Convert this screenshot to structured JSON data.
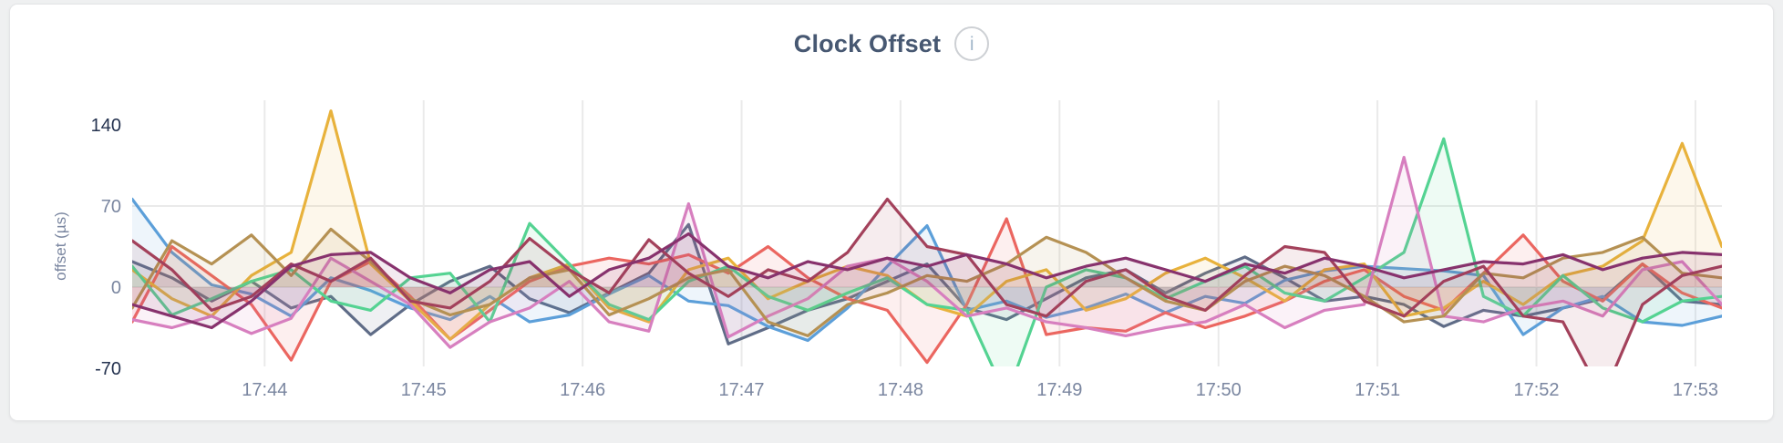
{
  "header": {
    "title": "Clock Offset",
    "info_icon_glyph": "i"
  },
  "colors": {
    "title": "#475872",
    "axis_label": "#7a86a0",
    "axis_tick_strong": "#24324f",
    "axis_tick_muted": "#7a86a0",
    "gridline": "#eaeaea",
    "card_background": "#ffffff",
    "page_background": "#eff0f1"
  },
  "chart_data": {
    "type": "line",
    "title": "Clock Offset",
    "xlabel": "",
    "ylabel": "offset (µs)",
    "unit": "µs",
    "grid": true,
    "legend_position": "none",
    "x_ticks": [
      "17:44",
      "17:45",
      "17:46",
      "17:47",
      "17:48",
      "17:49",
      "17:50",
      "17:51",
      "17:52",
      "17:53"
    ],
    "y_ticks": [
      140,
      70,
      0,
      -70
    ],
    "y_ticks_strong": [
      140,
      -70
    ],
    "y_gridlines": [
      70,
      0
    ],
    "ylim": [
      -70,
      140
    ],
    "x_start": "17:43:10",
    "x_end": "17:53:10",
    "sample_interval_seconds": 15,
    "series": [
      {
        "color": "#5F6C87",
        "values": [
          22,
          8,
          -12,
          5,
          -18,
          -8,
          -41,
          -15,
          5,
          18,
          -10,
          -22,
          -5,
          12,
          54,
          -49,
          -35,
          -20,
          -10,
          5,
          20,
          -18,
          -28,
          -10,
          8,
          15,
          -5,
          12,
          26,
          8,
          -12,
          -8,
          -15,
          -34,
          -20,
          -25,
          -18,
          -10,
          20,
          -12,
          -15
        ]
      },
      {
        "color": "#5C9FD9",
        "values": [
          76,
          30,
          2,
          -6,
          -25,
          8,
          -3,
          -18,
          -28,
          -8,
          -30,
          -24,
          -6,
          10,
          -12,
          -16,
          -34,
          -46,
          -18,
          18,
          53,
          -20,
          -12,
          -26,
          -18,
          -6,
          -22,
          -8,
          -14,
          6,
          14,
          18,
          16,
          14,
          10,
          -41,
          -18,
          -8,
          -30,
          -33,
          -25
        ]
      },
      {
        "color": "#EB6660",
        "values": [
          -30,
          35,
          10,
          -15,
          -63,
          5,
          22,
          -8,
          -45,
          -20,
          5,
          18,
          25,
          20,
          28,
          12,
          35,
          8,
          -10,
          -20,
          -65,
          -15,
          59,
          -41,
          -35,
          -38,
          -22,
          -35,
          -25,
          -12,
          5,
          15,
          -8,
          -20,
          12,
          45,
          5,
          -12,
          20,
          -5,
          -18
        ]
      },
      {
        "color": "#E8B23C",
        "values": [
          15,
          -10,
          -25,
          10,
          30,
          152,
          20,
          -12,
          -45,
          -15,
          8,
          20,
          -18,
          -30,
          15,
          25,
          -10,
          5,
          18,
          10,
          -15,
          -25,
          5,
          15,
          -20,
          -10,
          12,
          25,
          8,
          -12,
          15,
          20,
          -25,
          -18,
          5,
          -15,
          10,
          18,
          40,
          124,
          35
        ]
      },
      {
        "color": "#54D392",
        "values": [
          18,
          -24,
          -10,
          5,
          15,
          -12,
          -20,
          8,
          12,
          -30,
          55,
          20,
          -15,
          -28,
          5,
          18,
          -8,
          -20,
          -5,
          8,
          -15,
          -20,
          -95,
          0,
          15,
          8,
          -10,
          5,
          18,
          -5,
          -12,
          8,
          30,
          128,
          -8,
          -25,
          10,
          -18,
          -30,
          -12,
          -8
        ]
      },
      {
        "color": "#D77FBF",
        "values": [
          -28,
          -35,
          -25,
          -40,
          -27,
          25,
          5,
          -15,
          -52,
          -30,
          -18,
          5,
          -30,
          -38,
          72,
          -43,
          -25,
          -10,
          18,
          25,
          5,
          -25,
          -18,
          -30,
          -35,
          -42,
          -35,
          -30,
          -15,
          -35,
          -20,
          -15,
          112,
          -25,
          -30,
          -18,
          -12,
          -25,
          15,
          22,
          -15
        ]
      },
      {
        "color": "#B59153",
        "values": [
          -18,
          40,
          20,
          45,
          10,
          50,
          22,
          -10,
          -24,
          -15,
          8,
          15,
          -24,
          -10,
          8,
          15,
          -30,
          -42,
          -15,
          -5,
          10,
          5,
          20,
          43,
          30,
          8,
          -12,
          -20,
          5,
          18,
          10,
          -8,
          -30,
          -25,
          12,
          8,
          25,
          30,
          43,
          12,
          8
        ]
      },
      {
        "color": "#A3415B",
        "values": [
          40,
          15,
          -20,
          -8,
          20,
          5,
          25,
          -12,
          -18,
          5,
          42,
          15,
          -5,
          41,
          12,
          -8,
          15,
          5,
          30,
          76,
          35,
          28,
          -15,
          -25,
          5,
          15,
          -8,
          -20,
          10,
          35,
          30,
          -12,
          -25,
          5,
          18,
          -25,
          -30,
          -95,
          -15,
          10,
          18
        ]
      },
      {
        "color": "#87326D",
        "values": [
          -15,
          -25,
          -35,
          -12,
          18,
          28,
          30,
          8,
          -5,
          15,
          22,
          -8,
          15,
          25,
          46,
          18,
          8,
          22,
          15,
          25,
          18,
          28,
          20,
          8,
          18,
          25,
          15,
          5,
          20,
          12,
          25,
          18,
          8,
          15,
          22,
          20,
          28,
          15,
          25,
          30,
          28
        ]
      }
    ]
  }
}
